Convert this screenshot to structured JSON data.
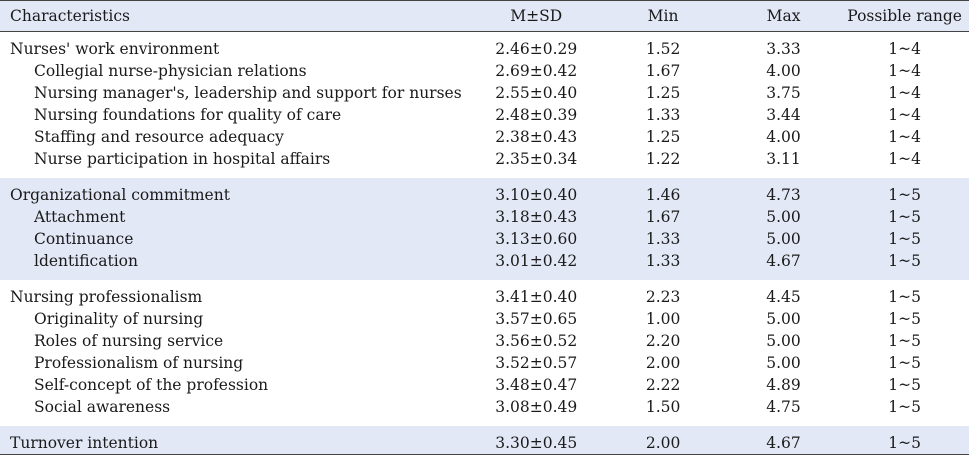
{
  "headers": [
    "Characteristics",
    "M±SD",
    "Min",
    "Max",
    "Possible range"
  ],
  "groups": [
    {
      "shaded": false,
      "rows": [
        {
          "name": "Nurses' work environment",
          "msd": "2.46±0.29",
          "min": "1.52",
          "max": "3.33",
          "range": "1~4",
          "sub": false
        },
        {
          "name": "Collegial nurse-physician relations",
          "msd": "2.69±0.42",
          "min": "1.67",
          "max": "4.00",
          "range": "1~4",
          "sub": true
        },
        {
          "name": "Nursing manager's, leadership and support for nurses",
          "msd": "2.55±0.40",
          "min": "1.25",
          "max": "3.75",
          "range": "1~4",
          "sub": true
        },
        {
          "name": "Nursing foundations for quality of care",
          "msd": "2.48±0.39",
          "min": "1.33",
          "max": "3.44",
          "range": "1~4",
          "sub": true
        },
        {
          "name": "Staffing and resource adequacy",
          "msd": "2.38±0.43",
          "min": "1.25",
          "max": "4.00",
          "range": "1~4",
          "sub": true
        },
        {
          "name": "Nurse participation in hospital affairs",
          "msd": "2.35±0.34",
          "min": "1.22",
          "max": "3.11",
          "range": "1~4",
          "sub": true
        }
      ]
    },
    {
      "shaded": true,
      "rows": [
        {
          "name": "Organizational commitment",
          "msd": "3.10±0.40",
          "min": "1.46",
          "max": "4.73",
          "range": "1~5",
          "sub": false
        },
        {
          "name": "Attachment",
          "msd": "3.18±0.43",
          "min": "1.67",
          "max": "5.00",
          "range": "1~5",
          "sub": true
        },
        {
          "name": "Continuance",
          "msd": "3.13±0.60",
          "min": "1.33",
          "max": "5.00",
          "range": "1~5",
          "sub": true
        },
        {
          "name": "ldentification",
          "msd": "3.01±0.42",
          "min": "1.33",
          "max": "4.67",
          "range": "1~5",
          "sub": true
        }
      ]
    },
    {
      "shaded": false,
      "rows": [
        {
          "name": "Nursing professionalism",
          "msd": "3.41±0.40",
          "min": "2.23",
          "max": "4.45",
          "range": "1~5",
          "sub": false
        },
        {
          "name": "Originality of nursing",
          "msd": "3.57±0.65",
          "min": "1.00",
          "max": "5.00",
          "range": "1~5",
          "sub": true
        },
        {
          "name": "Roles of nursing service",
          "msd": "3.56±0.52",
          "min": "2.20",
          "max": "5.00",
          "range": "1~5",
          "sub": true
        },
        {
          "name": "Professionalism of nursing",
          "msd": "3.52±0.57",
          "min": "2.00",
          "max": "5.00",
          "range": "1~5",
          "sub": true
        },
        {
          "name": "Self-concept of the profession",
          "msd": "3.48±0.47",
          "min": "2.22",
          "max": "4.89",
          "range": "1~5",
          "sub": true
        },
        {
          "name": "Social awareness",
          "msd": "3.08±0.49",
          "min": "1.50",
          "max": "4.75",
          "range": "1~5",
          "sub": true
        }
      ]
    },
    {
      "shaded": true,
      "rows": [
        {
          "name": "Turnover intention",
          "msd": "3.30±0.45",
          "min": "2.00",
          "max": "4.67",
          "range": "1~5",
          "sub": false
        }
      ]
    }
  ]
}
